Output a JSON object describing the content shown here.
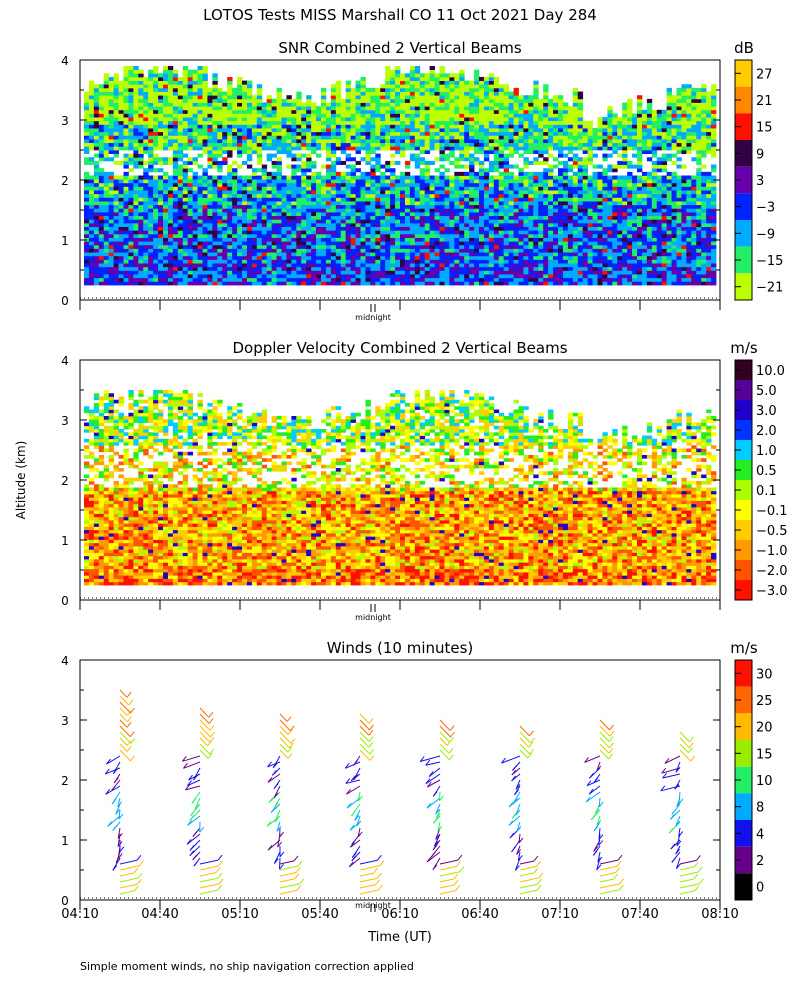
{
  "figure": {
    "title": "LOTOS Tests MISS Marshall CO  11 Oct 2021 Day 284",
    "ylabel": "Altitude (km)",
    "xlabel": "Time (UT)",
    "footnote": "Simple moment winds, no ship navigation correction applied",
    "midnight_label": "midnight",
    "colors": {
      "background": "#ffffff",
      "axis": "#000000",
      "missing": "#ffffff"
    }
  },
  "chart_data": [
    {
      "type": "heatmap",
      "title": "SNR Combined 2 Vertical Beams",
      "ylabel": "Altitude (km)",
      "ylim": [
        0,
        4
      ],
      "yticks": [
        "0",
        "1",
        "2",
        "3",
        "4"
      ],
      "colorbar_unit": "dB",
      "colorbar_labels": [
        "27",
        "21",
        "15",
        "9",
        "3",
        "−3",
        "−9",
        "−15",
        "−21"
      ],
      "colorbar_colors": [
        "#ffcc00",
        "#ff8800",
        "#ff1100",
        "#330044",
        "#6600aa",
        "#0022ff",
        "#00aaff",
        "#22ee66",
        "#bbff00"
      ],
      "data_range_km": [
        0.25,
        3.9
      ]
    },
    {
      "type": "heatmap",
      "title": "Doppler Velocity Combined 2 Vertical Beams",
      "ylabel": "Altitude (km)",
      "ylim": [
        0,
        4
      ],
      "yticks": [
        "0",
        "1",
        "2",
        "3",
        "4"
      ],
      "colorbar_unit": "m/s",
      "colorbar_labels": [
        "10.0",
        "5.0",
        "3.0",
        "2.0",
        "1.0",
        "0.5",
        "0.1",
        "−0.1",
        "−0.5",
        "−1.0",
        "−2.0",
        "−3.0"
      ],
      "colorbar_colors": [
        "#330022",
        "#550099",
        "#2200cc",
        "#0033ff",
        "#00ccff",
        "#22ee22",
        "#aaff00",
        "#ffff00",
        "#ffcc00",
        "#ff9900",
        "#ff5500",
        "#ff1100"
      ],
      "data_range_km": [
        0.25,
        3.5
      ]
    },
    {
      "type": "scatter",
      "title": "Winds (10 minutes)",
      "ylabel": "Altitude (km)",
      "xlabel": "Time (UT)",
      "ylim": [
        0,
        4
      ],
      "yticks": [
        "0",
        "1",
        "2",
        "3",
        "4"
      ],
      "xticks": [
        "04:10",
        "04:40",
        "05:10",
        "05:40",
        "06:10",
        "06:40",
        "07:10",
        "07:40",
        "08:10"
      ],
      "colorbar_unit": "m/s",
      "colorbar_labels": [
        "30",
        "25",
        "20",
        "15",
        "10",
        "8",
        "4",
        "2",
        "0"
      ],
      "colorbar_colors": [
        "#ff1100",
        "#ff6600",
        "#ffbb00",
        "#99ee00",
        "#22ee66",
        "#00aaff",
        "#1111ee",
        "#660088",
        "#000000"
      ],
      "profile_times": [
        "04:25",
        "04:55",
        "05:25",
        "05:55",
        "06:25",
        "06:55",
        "07:25",
        "07:55"
      ],
      "profile_top_km": [
        3.55,
        3.3,
        3.15,
        3.2,
        3.1,
        2.95,
        3.05,
        2.85
      ]
    }
  ]
}
